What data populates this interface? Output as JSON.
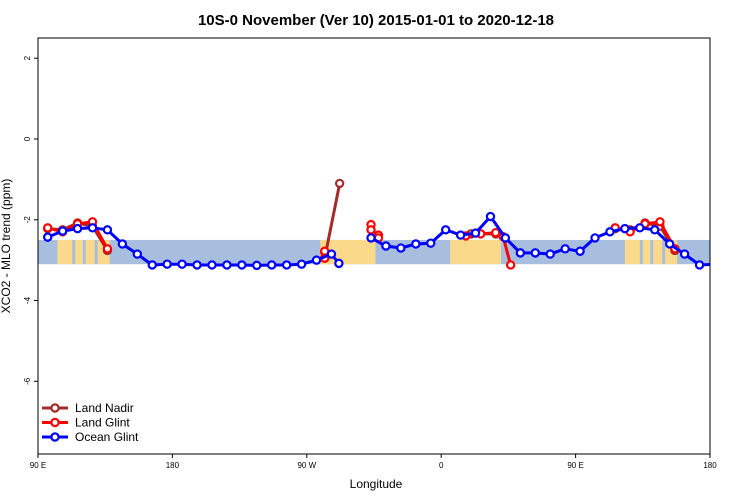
{
  "chart_data": {
    "type": "line",
    "title": "10S-0 November (Ver 10)   2015-01-01 to 2020-12-18",
    "xlabel": "Longitude",
    "ylabel": "XCO2 - MLO trend (ppm)",
    "xlim": [
      90,
      540
    ],
    "ylim": [
      -7.8,
      2.5
    ],
    "x_ticks": [
      {
        "value": 90,
        "label": "90 E"
      },
      {
        "value": 180,
        "label": "180"
      },
      {
        "value": 270,
        "label": "90 W"
      },
      {
        "value": 360,
        "label": "0"
      },
      {
        "value": 450,
        "label": "90 E"
      },
      {
        "value": 540,
        "label": "180"
      }
    ],
    "y_ticks": [
      {
        "value": 2,
        "label": "2"
      },
      {
        "value": 0,
        "label": "0"
      },
      {
        "value": -2,
        "label": "-2"
      },
      {
        "value": -4,
        "label": "-4"
      },
      {
        "value": -6,
        "label": "-6"
      }
    ],
    "band": {
      "ymin": -3.1,
      "ymax": -2.5,
      "sea_color": "#a7bedf",
      "land_color": "#fbd98a"
    },
    "legend_position": "bottom-left",
    "series": [
      {
        "name": "Land Nadir",
        "color": "#a52a2a",
        "segments": [
          [
            [
              96.5,
              -2.22
            ],
            [
              106.5,
              -2.25
            ],
            [
              116.5,
              -2.08
            ],
            [
              126.5,
              -2.16
            ],
            [
              136.5,
              -2.76
            ]
          ],
          [
            [
              282,
              -2.8
            ],
            [
              282,
              -2.95
            ],
            [
              292,
              -1.1
            ]
          ],
          [
            [
              380,
              -2.35
            ],
            [
              396.5,
              -2.35
            ]
          ],
          [
            [
              476.5,
              -2.22
            ],
            [
              486.5,
              -2.25
            ],
            [
              496.5,
              -2.08
            ],
            [
              506.5,
              -2.16
            ],
            [
              516.5,
              -2.76
            ]
          ]
        ]
      },
      {
        "name": "Land Glint",
        "color": "#ff0000",
        "segments": [
          [
            [
              96.5,
              -2.2
            ],
            [
              106.5,
              -2.3
            ],
            [
              116.5,
              -2.1
            ],
            [
              126.5,
              -2.05
            ],
            [
              136.5,
              -2.72
            ]
          ],
          [
            [
              282,
              -2.78
            ],
            [
              282,
              -2.95
            ]
          ],
          [
            [
              313,
              -2.12
            ],
            [
              313,
              -2.25
            ],
            [
              318,
              -2.38
            ],
            [
              318,
              -2.45
            ]
          ],
          [
            [
              376.5,
              -2.4
            ],
            [
              386.5,
              -2.35
            ],
            [
              396.5,
              -2.32
            ],
            [
              401.5,
              -2.42
            ],
            [
              406.5,
              -3.12
            ]
          ],
          [
            [
              476.5,
              -2.2
            ],
            [
              486.5,
              -2.3
            ],
            [
              496.5,
              -2.1
            ],
            [
              506.5,
              -2.05
            ],
            [
              516.5,
              -2.72
            ]
          ]
        ]
      },
      {
        "name": "Ocean Glint",
        "color": "#0000ff",
        "segments": [
          [
            [
              96.5,
              -2.43
            ],
            [
              106.5,
              -2.28
            ],
            [
              116.5,
              -2.22
            ],
            [
              126.5,
              -2.2
            ],
            [
              136.5,
              -2.25
            ],
            [
              146.5,
              -2.6
            ],
            [
              156.5,
              -2.85
            ],
            [
              166.5,
              -3.12
            ],
            [
              176.5,
              -3.1
            ],
            [
              186.5,
              -3.1
            ],
            [
              196.5,
              -3.12
            ],
            [
              206.5,
              -3.12
            ],
            [
              216.5,
              -3.12
            ],
            [
              226.5,
              -3.12
            ],
            [
              236.5,
              -3.13
            ],
            [
              246.5,
              -3.12
            ],
            [
              256.5,
              -3.12
            ],
            [
              266.5,
              -3.1
            ],
            [
              276.5,
              -3.0
            ],
            [
              286.5,
              -2.85
            ],
            [
              291.5,
              -3.08
            ]
          ],
          [
            [
              313,
              -2.45
            ],
            [
              323,
              -2.65
            ],
            [
              333,
              -2.7
            ],
            [
              343,
              -2.6
            ],
            [
              353,
              -2.58
            ],
            [
              363,
              -2.25
            ],
            [
              373,
              -2.38
            ],
            [
              383,
              -2.33
            ],
            [
              393,
              -1.92
            ],
            [
              403,
              -2.45
            ],
            [
              413,
              -2.82
            ],
            [
              423,
              -2.82
            ],
            [
              433,
              -2.85
            ],
            [
              443,
              -2.72
            ],
            [
              453,
              -2.78
            ],
            [
              463,
              -2.45
            ],
            [
              473,
              -2.3
            ],
            [
              483,
              -2.22
            ],
            [
              493,
              -2.2
            ],
            [
              503,
              -2.25
            ],
            [
              513,
              -2.6
            ],
            [
              523,
              -2.85
            ],
            [
              533,
              -3.12
            ],
            [
              543,
              -3.1
            ]
          ]
        ]
      }
    ]
  }
}
